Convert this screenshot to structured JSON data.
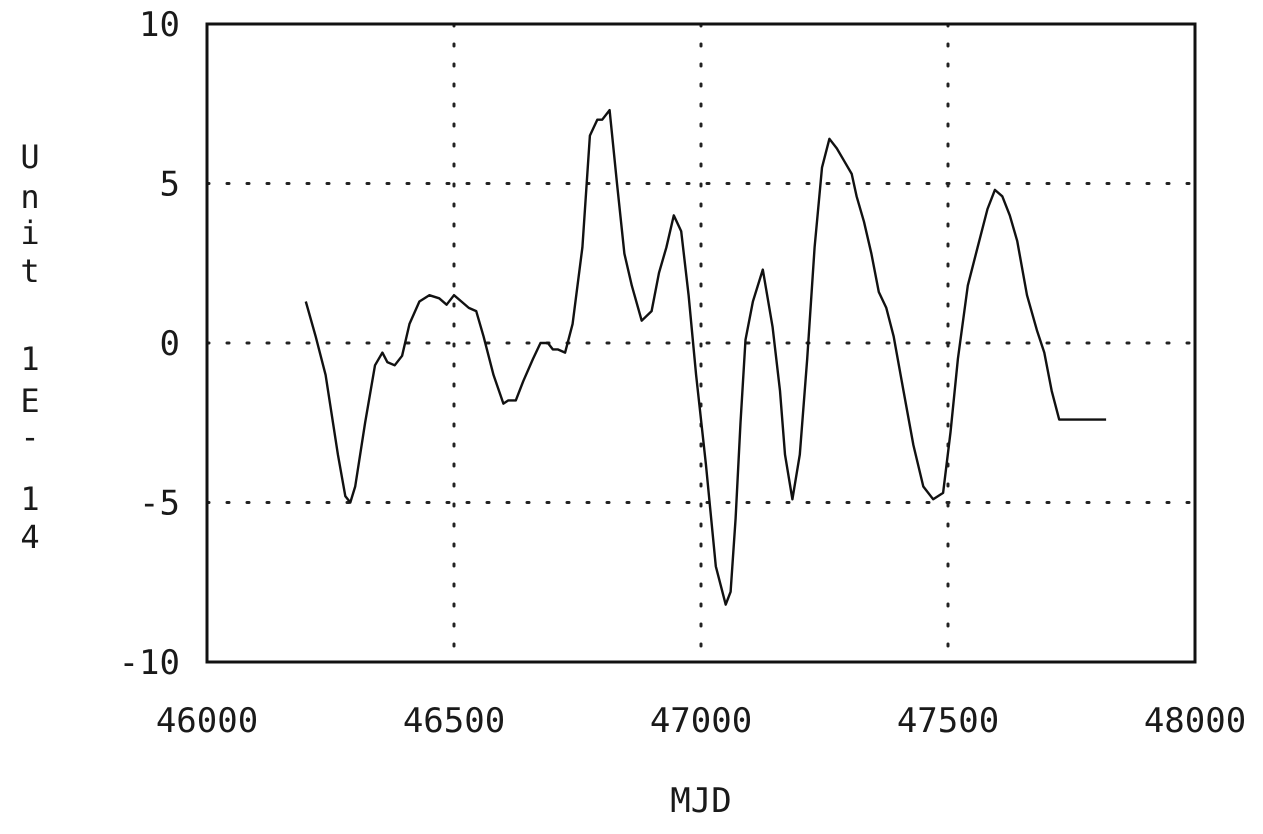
{
  "chart_data": {
    "type": "line",
    "title": "",
    "xlabel": "MJD",
    "ylabel_chars": [
      "U",
      "n",
      "i",
      "t",
      "1",
      "E",
      "-",
      "1",
      "4"
    ],
    "xlim": [
      46000,
      48000
    ],
    "ylim": [
      -10,
      10
    ],
    "x_ticks": [
      46000,
      46500,
      47000,
      47500,
      48000
    ],
    "x_tick_labels": [
      "46000",
      "46500",
      "47000",
      "47500",
      "48000"
    ],
    "y_ticks": [
      -10,
      -5,
      0,
      5,
      10
    ],
    "y_tick_labels": [
      "-10",
      "-5",
      "0",
      "5",
      "10"
    ],
    "grid": true,
    "series": [
      {
        "x": [
          46200,
          46220,
          46240,
          46265,
          46280,
          46290,
          46300,
          46320,
          46340,
          46355,
          46365,
          46380,
          46395,
          46410,
          46430,
          46450,
          46470,
          46485,
          46500,
          46515,
          46530,
          46545,
          46560,
          46580,
          46600,
          46610,
          46625,
          46640,
          46660,
          46675,
          46690,
          46700,
          46710,
          46725,
          46740,
          46760,
          46775,
          46790,
          46800,
          46815,
          46830,
          46845,
          46860,
          46880,
          46900,
          46915,
          46930,
          46945,
          46960,
          46975,
          46990,
          47010,
          47030,
          47050,
          47060,
          47070,
          47080,
          47090,
          47105,
          47125,
          47145,
          47160,
          47170,
          47185,
          47200,
          47215,
          47230,
          47245,
          47260,
          47275,
          47290,
          47305,
          47315,
          47330,
          47345,
          47360,
          47375,
          47390,
          47410,
          47430,
          47450,
          47470,
          47490,
          47505,
          47520,
          47540,
          47560,
          47580,
          47595,
          47610,
          47625,
          47640,
          47660,
          47680,
          47695,
          47710,
          47725,
          47740,
          47755,
          47770,
          47780,
          47795,
          47805,
          47815,
          47820
        ],
        "y": [
          1.3,
          0.2,
          -1.0,
          -3.5,
          -4.8,
          -5.0,
          -4.5,
          -2.5,
          -0.7,
          -0.3,
          -0.6,
          -0.7,
          -0.4,
          0.6,
          1.3,
          1.5,
          1.4,
          1.2,
          1.5,
          1.3,
          1.1,
          1.0,
          0.2,
          -1.0,
          -1.9,
          -1.8,
          -1.8,
          -1.2,
          -0.5,
          0.0,
          0.0,
          -0.2,
          -0.2,
          -0.3,
          0.6,
          3.0,
          6.5,
          7.0,
          7.0,
          7.3,
          5.0,
          2.8,
          1.8,
          0.7,
          1.0,
          2.2,
          3.0,
          4.0,
          3.5,
          1.5,
          -1.0,
          -3.8,
          -7.0,
          -8.2,
          -7.8,
          -5.5,
          -2.5,
          0.1,
          1.3,
          2.3,
          0.5,
          -1.5,
          -3.5,
          -4.9,
          -3.5,
          -0.5,
          3.0,
          5.5,
          6.4,
          6.1,
          5.7,
          5.3,
          4.6,
          3.8,
          2.8,
          1.6,
          1.1,
          0.2,
          -1.5,
          -3.2,
          -4.5,
          -4.9,
          -4.7,
          -2.8,
          -0.5,
          1.8,
          3.0,
          4.2,
          4.8,
          4.6,
          4.0,
          3.2,
          1.5,
          0.4,
          -0.3,
          -1.5,
          -2.4,
          -2.4,
          -2.4,
          -2.4,
          -2.4,
          -2.4,
          -2.4,
          -2.4,
          -2.4
        ]
      }
    ]
  }
}
